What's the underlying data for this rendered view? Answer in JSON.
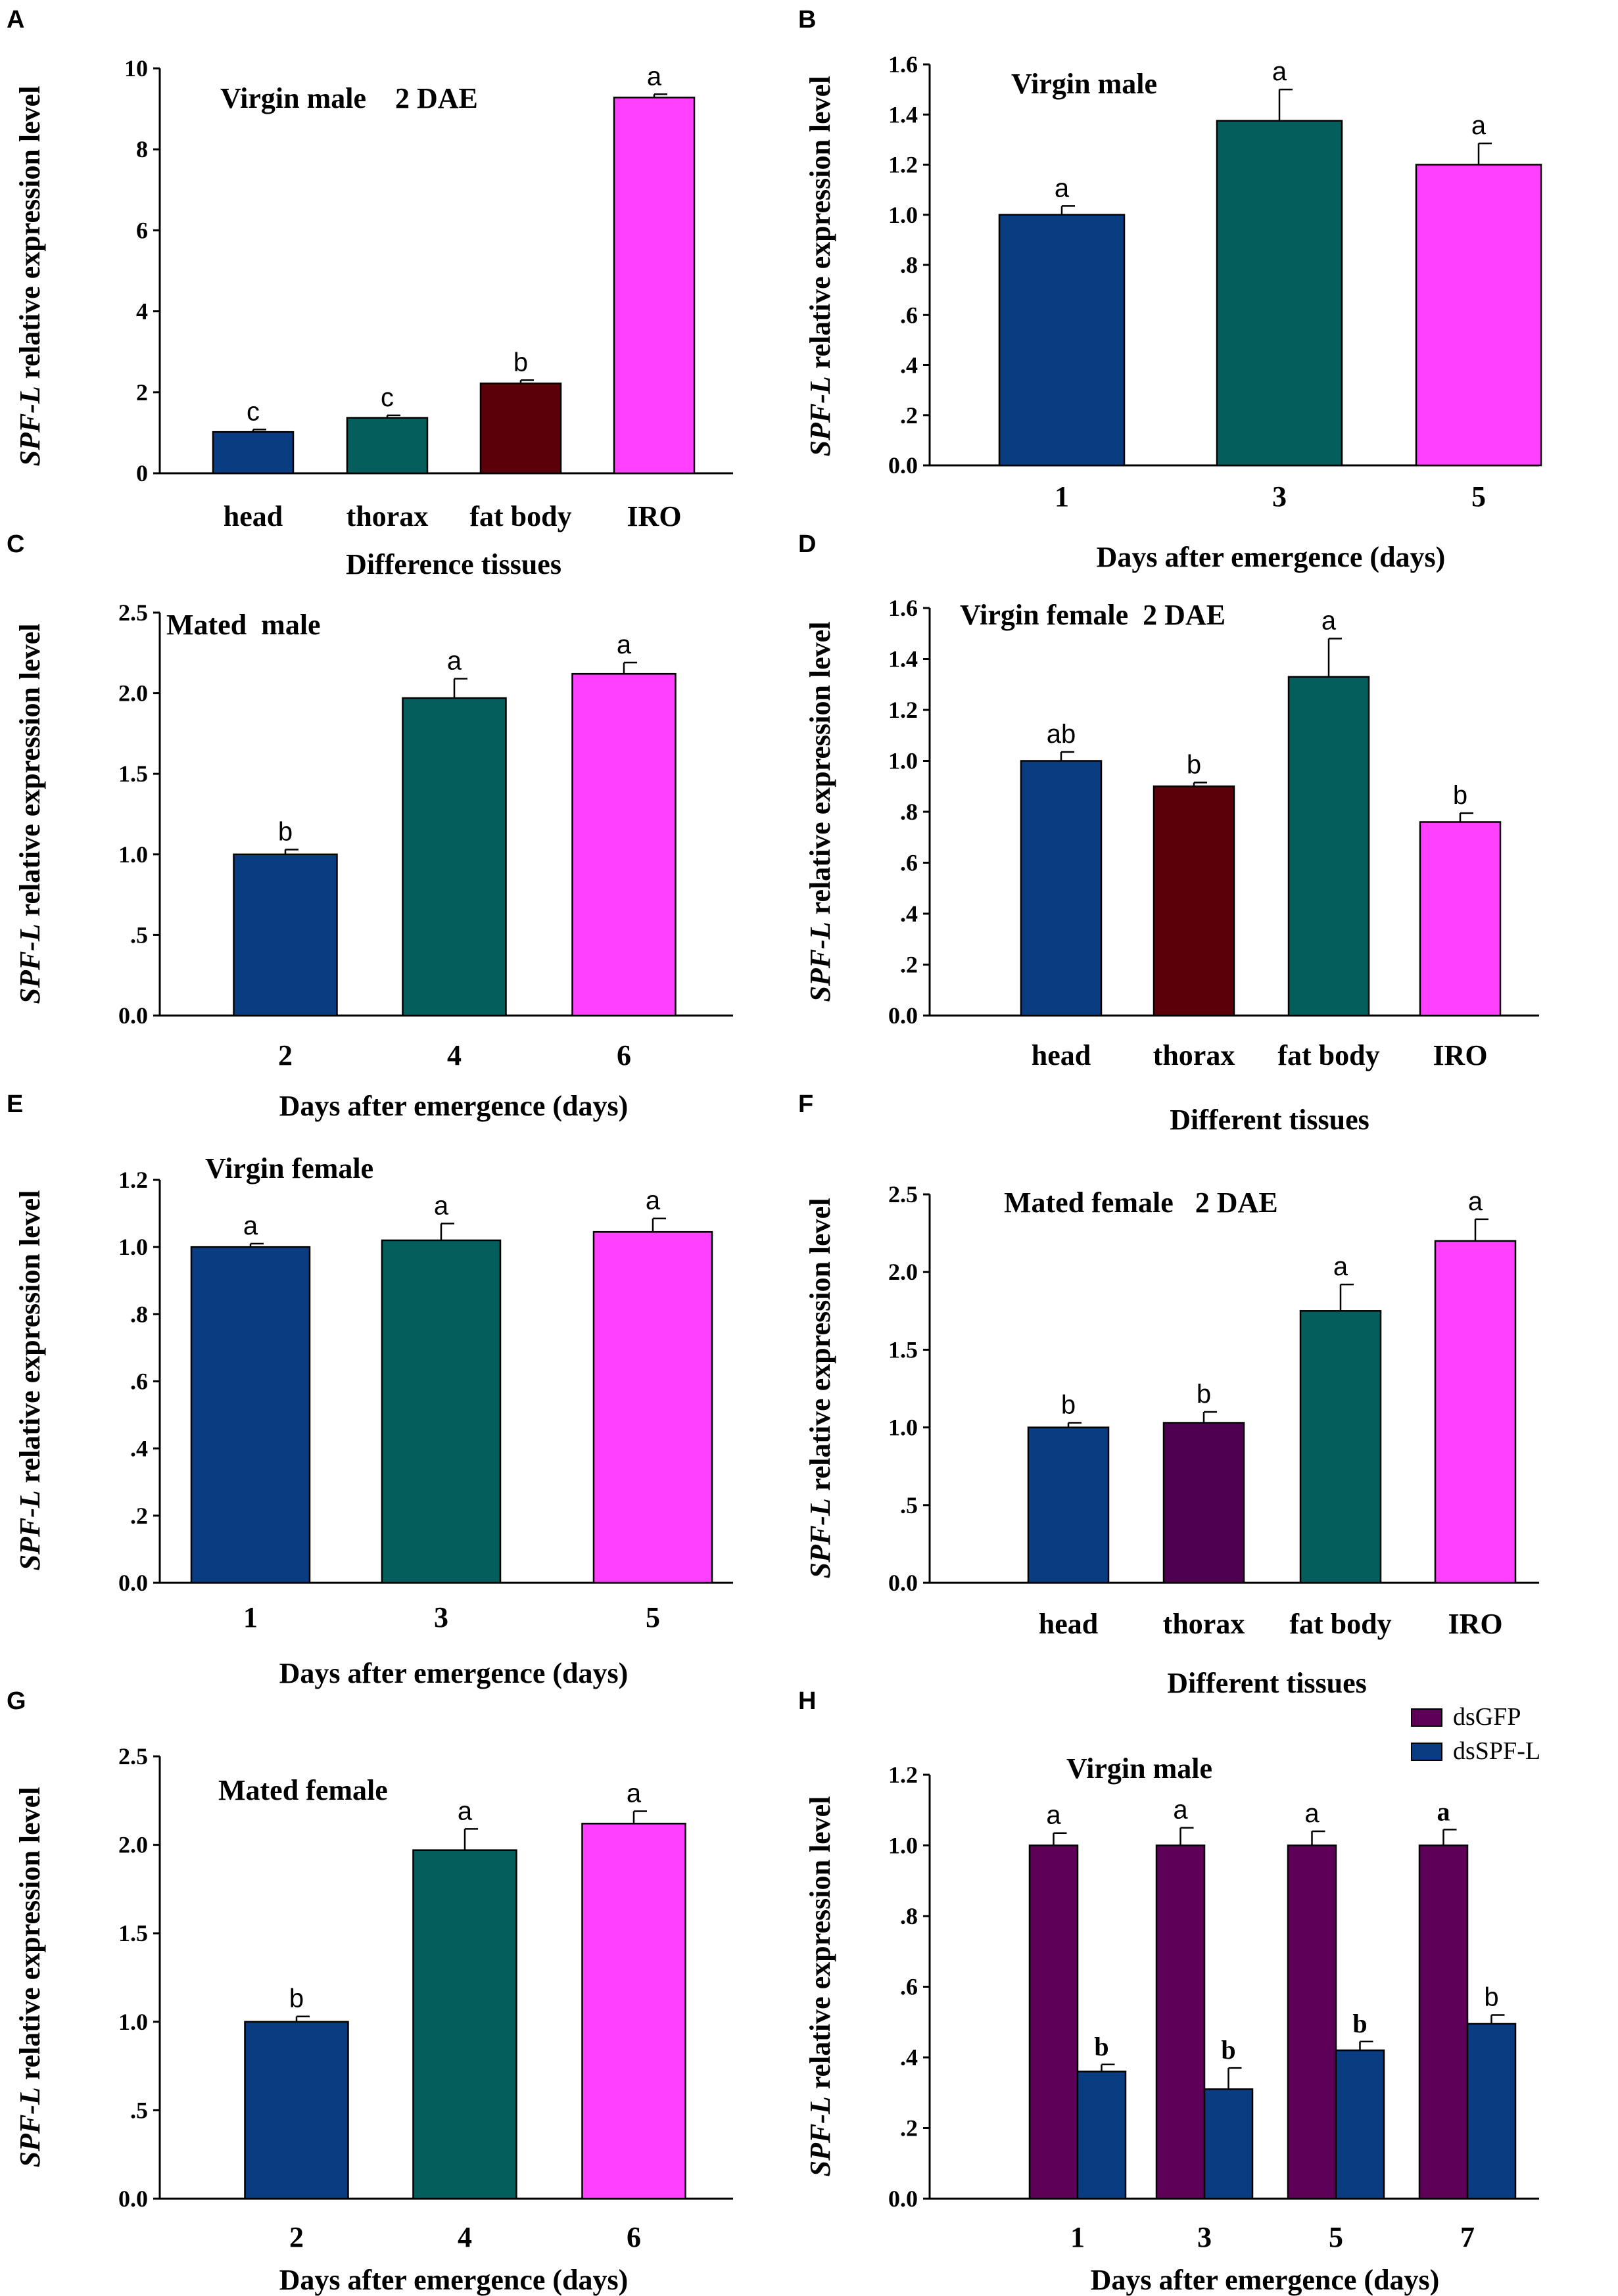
{
  "chart_data": [
    {
      "panel": "A",
      "type": "bar",
      "title": "Virgin male    2 DAE",
      "categories": [
        "head",
        "thorax",
        "fat body",
        "IRO"
      ],
      "values": [
        1.02,
        1.37,
        2.22,
        9.28
      ],
      "errors": [
        0.06,
        0.06,
        0.08,
        0.08
      ],
      "significance": [
        "c",
        "c",
        "b",
        "a"
      ],
      "colors": [
        "#0a3c82",
        "#035e5c",
        "#5b0008",
        "#ff40ff"
      ],
      "xlabel": "Difference tissues",
      "ylabel_italic": "SPF-L",
      "ylabel_rest": " relative expression level",
      "ylim": [
        0,
        10
      ],
      "ytick_values": [
        0,
        2,
        4,
        6,
        8,
        10
      ],
      "ytick_labels": [
        "0",
        "2",
        "4",
        "6",
        "8",
        "10"
      ]
    },
    {
      "panel": "B",
      "type": "bar",
      "title": "Virgin male",
      "categories": [
        "1",
        "3",
        "5"
      ],
      "values": [
        1.0,
        1.375,
        1.2
      ],
      "errors": [
        0.035,
        0.125,
        0.085
      ],
      "significance": [
        "a",
        "a",
        "a"
      ],
      "colors": [
        "#0a3c82",
        "#035e5c",
        "#ff40ff"
      ],
      "xlabel": "Days after emergence (days)",
      "ylabel_italic": "SPF-L",
      "ylabel_rest": " relative expression level",
      "ylim": [
        0,
        1.6
      ],
      "ytick_values": [
        0,
        0.2,
        0.4,
        0.6,
        0.8,
        1.0,
        1.2,
        1.4,
        1.6
      ],
      "ytick_labels": [
        "0.0",
        ".2",
        ".4",
        ".6",
        ".8",
        "1.0",
        "1.2",
        "1.4",
        "1.6"
      ]
    },
    {
      "panel": "C",
      "type": "bar",
      "title": "Mated  male",
      "categories": [
        "2",
        "4",
        "6"
      ],
      "values": [
        1.0,
        1.97,
        2.12
      ],
      "errors": [
        0.03,
        0.12,
        0.07
      ],
      "significance": [
        "b",
        "a",
        "a"
      ],
      "colors": [
        "#0a3c82",
        "#035e5c",
        "#ff40ff"
      ],
      "xlabel": "Days after emergence (days)",
      "ylabel_italic": "SPF-L",
      "ylabel_rest": " relative expression level",
      "ylim": [
        0,
        2.5
      ],
      "ytick_values": [
        0,
        0.5,
        1.0,
        1.5,
        2.0,
        2.5
      ],
      "ytick_labels": [
        "0.0",
        ".5",
        "1.0",
        "1.5",
        "2.0",
        "2.5"
      ]
    },
    {
      "panel": "D",
      "type": "bar",
      "title": "Virgin female  2 DAE",
      "categories": [
        "head",
        "thorax",
        "fat body",
        "IRO"
      ],
      "values": [
        1.0,
        0.9,
        1.33,
        0.76
      ],
      "errors": [
        0.035,
        0.015,
        0.15,
        0.035
      ],
      "significance": [
        "ab",
        "b",
        "a",
        "b"
      ],
      "colors": [
        "#0a3c82",
        "#5b0008",
        "#035e5c",
        "#ff40ff"
      ],
      "xlabel": "Different tissues",
      "ylabel_italic": "SPF-L",
      "ylabel_rest": "  relative expression level",
      "ylim": [
        0,
        1.6
      ],
      "ytick_values": [
        0,
        0.2,
        0.4,
        0.6,
        0.8,
        1.0,
        1.2,
        1.4,
        1.6
      ],
      "ytick_labels": [
        "0.0",
        ".2",
        ".4",
        ".6",
        ".8",
        "1.0",
        "1.2",
        "1.4",
        "1.6"
      ]
    },
    {
      "panel": "E",
      "type": "bar",
      "title": "Virgin female",
      "categories": [
        "1",
        "3",
        "5"
      ],
      "values": [
        1.0,
        1.02,
        1.045
      ],
      "errors": [
        0.01,
        0.05,
        0.04
      ],
      "significance": [
        "a",
        "a",
        "a"
      ],
      "colors": [
        "#0a3c82",
        "#035e5c",
        "#ff40ff"
      ],
      "xlabel": "Days after emergence (days)",
      "ylabel_italic": "SPF-L",
      "ylabel_rest": " relative expression level",
      "ylim": [
        0,
        1.2
      ],
      "ytick_values": [
        0,
        0.2,
        0.4,
        0.6,
        0.8,
        1.0,
        1.2
      ],
      "ytick_labels": [
        "0.0",
        ".2",
        ".4",
        ".6",
        ".8",
        "1.0",
        "1.2"
      ]
    },
    {
      "panel": "F",
      "type": "bar",
      "title": "Mated female   2 DAE",
      "categories": [
        "head",
        "thorax",
        "fat body",
        "IRO"
      ],
      "values": [
        1.0,
        1.03,
        1.75,
        2.2
      ],
      "errors": [
        0.03,
        0.07,
        0.17,
        0.14
      ],
      "significance": [
        "b",
        "b",
        "a",
        "a"
      ],
      "colors": [
        "#0a3c82",
        "#500050",
        "#035e5c",
        "#ff40ff"
      ],
      "xlabel": "Different tissues",
      "ylabel_italic": "SPF-L",
      "ylabel_rest": " relative expression level",
      "ylim": [
        0,
        2.5
      ],
      "ytick_values": [
        0,
        0.5,
        1.0,
        1.5,
        2.0,
        2.5
      ],
      "ytick_labels": [
        "0.0",
        ".5",
        "1.0",
        "1.5",
        "2.0",
        "2.5"
      ]
    },
    {
      "panel": "G",
      "type": "bar",
      "title": "Mated female",
      "categories": [
        "2",
        "4",
        "6"
      ],
      "values": [
        1.0,
        1.97,
        2.12
      ],
      "errors": [
        0.03,
        0.12,
        0.07
      ],
      "significance": [
        "b",
        "a",
        "a"
      ],
      "colors": [
        "#0a3c82",
        "#035e5c",
        "#ff40ff"
      ],
      "xlabel": "Days after emergence (days)",
      "ylabel_italic": "SPF-L",
      "ylabel_rest": " relative expression level",
      "ylim": [
        0,
        2.5
      ],
      "ytick_values": [
        0,
        0.5,
        1.0,
        1.5,
        2.0,
        2.5
      ],
      "ytick_labels": [
        "0.0",
        ".5",
        "1.0",
        "1.5",
        "2.0",
        "2.5"
      ]
    },
    {
      "panel": "H",
      "type": "bar",
      "title": "Virgin male",
      "categories": [
        "1",
        "3",
        "5",
        "7"
      ],
      "series": [
        {
          "name": "dsGFP",
          "color": "#5e0058",
          "values": [
            1.0,
            1.0,
            1.0,
            1.0
          ],
          "errors": [
            0.035,
            0.05,
            0.04,
            0.045
          ],
          "significance": [
            "a",
            "a",
            "a",
            "a"
          ],
          "sig_bold": [
            false,
            false,
            false,
            true
          ]
        },
        {
          "name": "dsSPF-L",
          "color": "#0a3c82",
          "values": [
            0.36,
            0.31,
            0.42,
            0.495
          ],
          "errors": [
            0.02,
            0.06,
            0.025,
            0.025
          ],
          "significance": [
            "b",
            "b",
            "b",
            "b"
          ],
          "sig_bold": [
            true,
            true,
            true,
            false
          ]
        }
      ],
      "xlabel": "Days after emergence (days)",
      "ylabel_italic": "SPF-L",
      "ylabel_rest": " relative expression level",
      "ylim": [
        0,
        1.2
      ],
      "ytick_values": [
        0,
        0.2,
        0.4,
        0.6,
        0.8,
        1.0,
        1.2
      ],
      "ytick_labels": [
        "0.0",
        ".2",
        ".4",
        ".6",
        ".8",
        "1.0",
        "1.2"
      ],
      "legend_position": "top-right"
    }
  ]
}
